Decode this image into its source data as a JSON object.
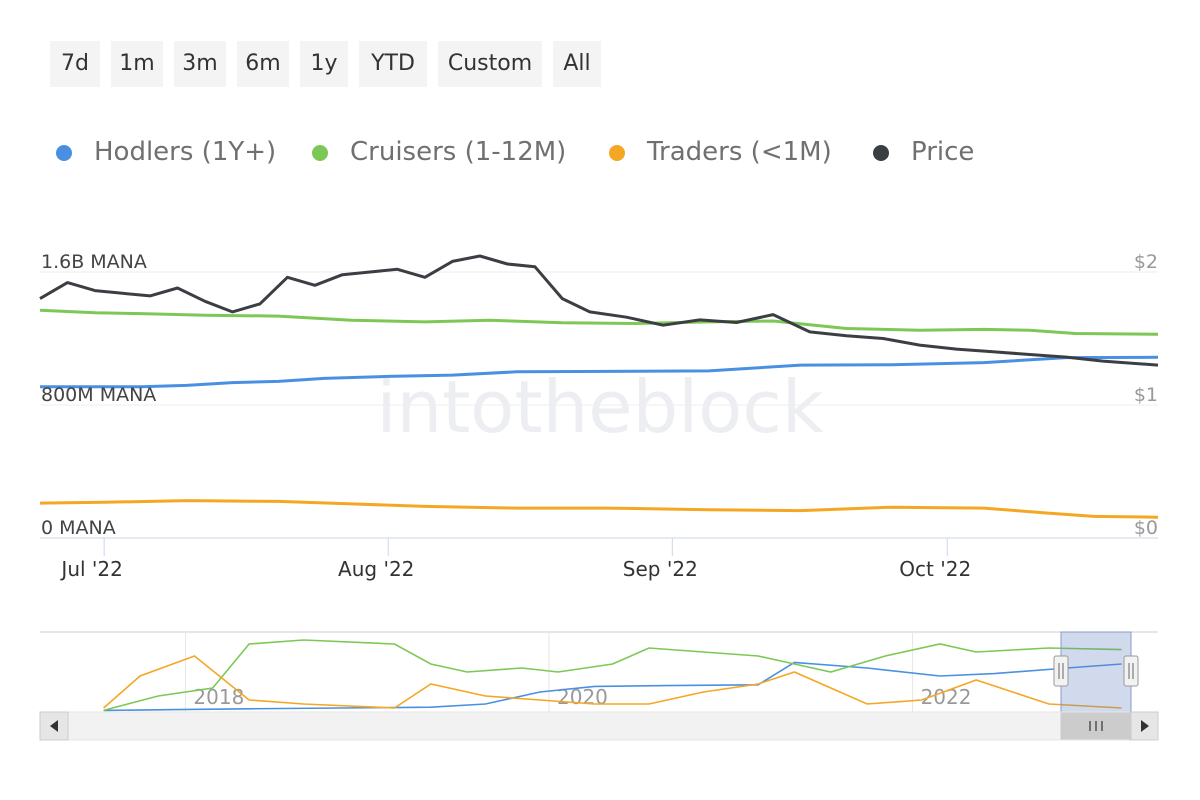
{
  "range_selector": {
    "buttons": [
      "7d",
      "1m",
      "3m",
      "6m",
      "1y",
      "YTD",
      "Custom",
      "All"
    ]
  },
  "legend": [
    {
      "label": "Hodlers (1Y+)",
      "color": "#4a90e2"
    },
    {
      "label": "Cruisers (1-12M)",
      "color": "#7dc855"
    },
    {
      "label": "Traders (<1M)",
      "color": "#f5a623"
    },
    {
      "label": "Price",
      "color": "#3b3f44"
    }
  ],
  "watermark": "intotheblock",
  "chart_data": {
    "type": "line",
    "x_tick_labels": [
      "Jul '22",
      "Aug '22",
      "Sep '22",
      "Oct '22"
    ],
    "x_range": [
      "2022-06-24",
      "2022-10-24"
    ],
    "left_axis": {
      "ticks": [
        "1.6B MANA",
        "800M MANA",
        "0 MANA"
      ],
      "ylim": [
        0,
        1600000000
      ]
    },
    "right_axis": {
      "ticks": [
        "$2",
        "$1",
        "$0"
      ],
      "ylim": [
        0,
        2
      ]
    },
    "series": [
      {
        "name": "Hodlers (1Y+)",
        "axis": "left",
        "color": "#4a90e2",
        "x": [
          "2022-06-24",
          "2022-07-05",
          "2022-07-10",
          "2022-07-15",
          "2022-07-20",
          "2022-07-25",
          "2022-08-01",
          "2022-08-08",
          "2022-08-15",
          "2022-08-25",
          "2022-09-05",
          "2022-09-15",
          "2022-09-25",
          "2022-10-05",
          "2022-10-14",
          "2022-10-24"
        ],
        "values": [
          910000000,
          910000000,
          918000000,
          935000000,
          942000000,
          960000000,
          972000000,
          980000000,
          1000000000,
          1002000000,
          1005000000,
          1040000000,
          1042000000,
          1055000000,
          1085000000,
          1087000000
        ]
      },
      {
        "name": "Cruisers (1-12M)",
        "axis": "left",
        "color": "#7dc855",
        "x": [
          "2022-06-24",
          "2022-06-30",
          "2022-07-05",
          "2022-07-12",
          "2022-07-20",
          "2022-07-28",
          "2022-08-05",
          "2022-08-12",
          "2022-08-20",
          "2022-08-28",
          "2022-09-05",
          "2022-09-12",
          "2022-09-20",
          "2022-09-28",
          "2022-10-05",
          "2022-10-10",
          "2022-10-15",
          "2022-10-24"
        ],
        "values": [
          1370000000,
          1355000000,
          1350000000,
          1340000000,
          1335000000,
          1310000000,
          1300000000,
          1310000000,
          1295000000,
          1290000000,
          1300000000,
          1305000000,
          1260000000,
          1250000000,
          1255000000,
          1250000000,
          1230000000,
          1225000000
        ]
      },
      {
        "name": "Traders (<1M)",
        "axis": "left",
        "color": "#f5a623",
        "x": [
          "2022-06-24",
          "2022-07-01",
          "2022-07-10",
          "2022-07-20",
          "2022-07-28",
          "2022-08-05",
          "2022-08-15",
          "2022-08-25",
          "2022-09-05",
          "2022-09-15",
          "2022-09-25",
          "2022-10-05",
          "2022-10-12",
          "2022-10-17",
          "2022-10-24"
        ],
        "values": [
          210000000,
          215000000,
          225000000,
          220000000,
          205000000,
          190000000,
          180000000,
          180000000,
          170000000,
          165000000,
          185000000,
          180000000,
          150000000,
          130000000,
          125000000
        ]
      },
      {
        "name": "Price",
        "axis": "right",
        "color": "#3b3f44",
        "x": [
          "2022-06-24",
          "2022-06-27",
          "2022-06-30",
          "2022-07-03",
          "2022-07-06",
          "2022-07-09",
          "2022-07-12",
          "2022-07-15",
          "2022-07-18",
          "2022-07-21",
          "2022-07-24",
          "2022-07-27",
          "2022-07-30",
          "2022-08-02",
          "2022-08-05",
          "2022-08-08",
          "2022-08-11",
          "2022-08-14",
          "2022-08-17",
          "2022-08-20",
          "2022-08-23",
          "2022-08-27",
          "2022-08-31",
          "2022-09-04",
          "2022-09-08",
          "2022-09-12",
          "2022-09-16",
          "2022-09-20",
          "2022-09-24",
          "2022-09-28",
          "2022-10-02",
          "2022-10-06",
          "2022-10-10",
          "2022-10-14",
          "2022-10-18",
          "2022-10-24"
        ],
        "values": [
          1.8,
          1.92,
          1.86,
          1.84,
          1.82,
          1.88,
          1.78,
          1.7,
          1.76,
          1.96,
          1.9,
          1.98,
          2.0,
          2.02,
          1.96,
          2.08,
          2.12,
          2.06,
          2.04,
          1.8,
          1.7,
          1.66,
          1.6,
          1.64,
          1.62,
          1.68,
          1.55,
          1.52,
          1.5,
          1.45,
          1.42,
          1.4,
          1.38,
          1.36,
          1.33,
          1.3
        ]
      }
    ]
  },
  "navigator": {
    "x_tick_labels": [
      "2018",
      "2020",
      "2022"
    ],
    "series": [
      {
        "name": "Hodlers (1Y+)",
        "color": "#4a90e2",
        "x": [
          2017.2,
          2017.6,
          2018.0,
          2018.5,
          2019.0,
          2019.3,
          2019.6,
          2019.9,
          2020.3,
          2020.8,
          2021.0,
          2021.4,
          2021.8,
          2022.1,
          2022.5,
          2022.8
        ],
        "values": [
          0.02,
          0.03,
          0.04,
          0.05,
          0.06,
          0.1,
          0.25,
          0.32,
          0.33,
          0.34,
          0.62,
          0.55,
          0.45,
          0.48,
          0.55,
          0.6
        ]
      },
      {
        "name": "Cruisers (1-12M)",
        "color": "#7dc855",
        "x": [
          2017.2,
          2017.5,
          2017.8,
          2018.0,
          2018.3,
          2018.8,
          2019.0,
          2019.2,
          2019.5,
          2019.7,
          2020.0,
          2020.2,
          2020.5,
          2020.8,
          2021.0,
          2021.2,
          2021.5,
          2021.8,
          2022.0,
          2022.4,
          2022.8
        ],
        "values": [
          0.02,
          0.2,
          0.3,
          0.85,
          0.9,
          0.85,
          0.6,
          0.5,
          0.55,
          0.5,
          0.6,
          0.8,
          0.75,
          0.7,
          0.6,
          0.5,
          0.7,
          0.85,
          0.75,
          0.8,
          0.78
        ]
      },
      {
        "name": "Traders (<1M)",
        "color": "#f5a623",
        "x": [
          2017.2,
          2017.4,
          2017.7,
          2018.0,
          2018.3,
          2018.8,
          2019.0,
          2019.3,
          2019.6,
          2019.9,
          2020.2,
          2020.5,
          2020.8,
          2021.0,
          2021.2,
          2021.4,
          2021.7,
          2022.0,
          2022.4,
          2022.8
        ],
        "values": [
          0.05,
          0.45,
          0.7,
          0.15,
          0.1,
          0.05,
          0.35,
          0.2,
          0.15,
          0.1,
          0.1,
          0.25,
          0.35,
          0.5,
          0.3,
          0.1,
          0.15,
          0.4,
          0.1,
          0.05
        ]
      }
    ]
  }
}
